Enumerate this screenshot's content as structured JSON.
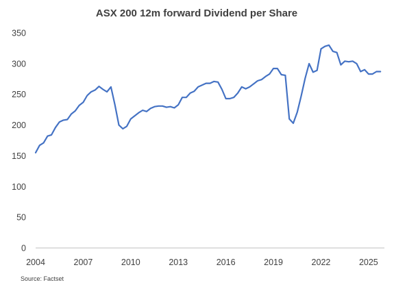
{
  "chart_data": {
    "type": "line",
    "title": "ASX 200 12m forward Dividend per Share",
    "source": "Source: Factset",
    "xlabel": "",
    "ylabel": "",
    "xlim": [
      2004,
      2026
    ],
    "ylim": [
      0,
      350
    ],
    "x_ticks": [
      2004,
      2007,
      2010,
      2013,
      2016,
      2019,
      2022,
      2025
    ],
    "y_ticks": [
      0,
      50,
      100,
      150,
      200,
      250,
      300,
      350
    ],
    "grid": false,
    "legend": "none",
    "line_color": "#4472C4",
    "series": [
      {
        "x": [
          2004.0,
          2004.25,
          2004.5,
          2004.75,
          2005.0,
          2005.25,
          2005.5,
          2005.75,
          2006.0,
          2006.25,
          2006.5,
          2006.75,
          2007.0,
          2007.25,
          2007.5,
          2007.75,
          2008.0,
          2008.25,
          2008.5,
          2008.75,
          2009.0,
          2009.25,
          2009.5,
          2009.75,
          2010.0,
          2010.25,
          2010.5,
          2010.75,
          2011.0,
          2011.25,
          2011.5,
          2011.75,
          2012.0,
          2012.25,
          2012.5,
          2012.75,
          2013.0,
          2013.25,
          2013.5,
          2013.75,
          2014.0,
          2014.25,
          2014.5,
          2014.75,
          2015.0,
          2015.25,
          2015.5,
          2015.75,
          2016.0,
          2016.25,
          2016.5,
          2016.75,
          2017.0,
          2017.25,
          2017.5,
          2017.75,
          2018.0,
          2018.25,
          2018.5,
          2018.75,
          2019.0,
          2019.25,
          2019.5,
          2019.75,
          2020.0,
          2020.25,
          2020.5,
          2020.75,
          2021.0,
          2021.25,
          2021.5,
          2021.75,
          2022.0,
          2022.25,
          2022.5,
          2022.75,
          2023.0,
          2023.25,
          2023.5,
          2023.75,
          2024.0,
          2024.25,
          2024.5,
          2024.75,
          2025.0,
          2025.25,
          2025.5,
          2025.75
        ],
        "values": [
          155,
          167,
          171,
          182,
          184,
          196,
          205,
          208,
          209,
          218,
          223,
          232,
          237,
          248,
          254,
          257,
          263,
          258,
          254,
          262,
          233,
          200,
          194,
          198,
          210,
          215,
          220,
          224,
          222,
          227,
          230,
          231,
          231,
          229,
          230,
          228,
          233,
          245,
          245,
          252,
          255,
          262,
          265,
          268,
          268,
          271,
          270,
          258,
          243,
          243,
          245,
          252,
          262,
          259,
          262,
          267,
          272,
          274,
          279,
          283,
          292,
          292,
          282,
          281,
          210,
          203,
          221,
          247,
          276,
          300,
          286,
          289,
          324,
          328,
          330,
          320,
          318,
          298,
          304,
          303,
          304,
          300,
          287,
          290,
          283,
          283,
          287,
          287
        ]
      }
    ]
  }
}
